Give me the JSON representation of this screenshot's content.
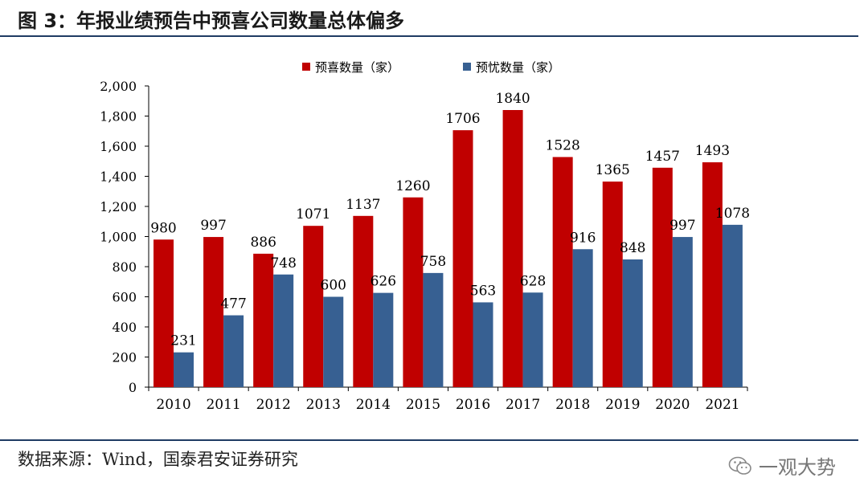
{
  "header": {
    "title": "图 3：年报业绩预告中预喜公司数量总体偏多"
  },
  "footer": {
    "source": "数据来源：Wind，国泰君安证券研究"
  },
  "watermark": {
    "text": "一观大势",
    "icon": "wechat-icon"
  },
  "chart_data": {
    "type": "bar",
    "title": "",
    "xlabel": "",
    "ylabel": "",
    "ylim": [
      0,
      2000
    ],
    "y_ticks": [
      "0",
      "200",
      "400",
      "600",
      "800",
      "1,000",
      "1,200",
      "1,400",
      "1,600",
      "1,800",
      "2,000"
    ],
    "grid": false,
    "legend_position": "top-center",
    "categories": [
      "2010",
      "2011",
      "2012",
      "2013",
      "2014",
      "2015",
      "2016",
      "2017",
      "2018",
      "2019",
      "2020",
      "2021"
    ],
    "series": [
      {
        "name": "预喜数量（家）",
        "color": "#c00000",
        "values": [
          980,
          997,
          886,
          1071,
          1137,
          1260,
          1706,
          1840,
          1528,
          1365,
          1457,
          1493
        ]
      },
      {
        "name": "预忧数量（家）",
        "color": "#376092",
        "values": [
          231,
          477,
          748,
          600,
          626,
          758,
          563,
          628,
          916,
          848,
          997,
          1078
        ]
      }
    ]
  }
}
